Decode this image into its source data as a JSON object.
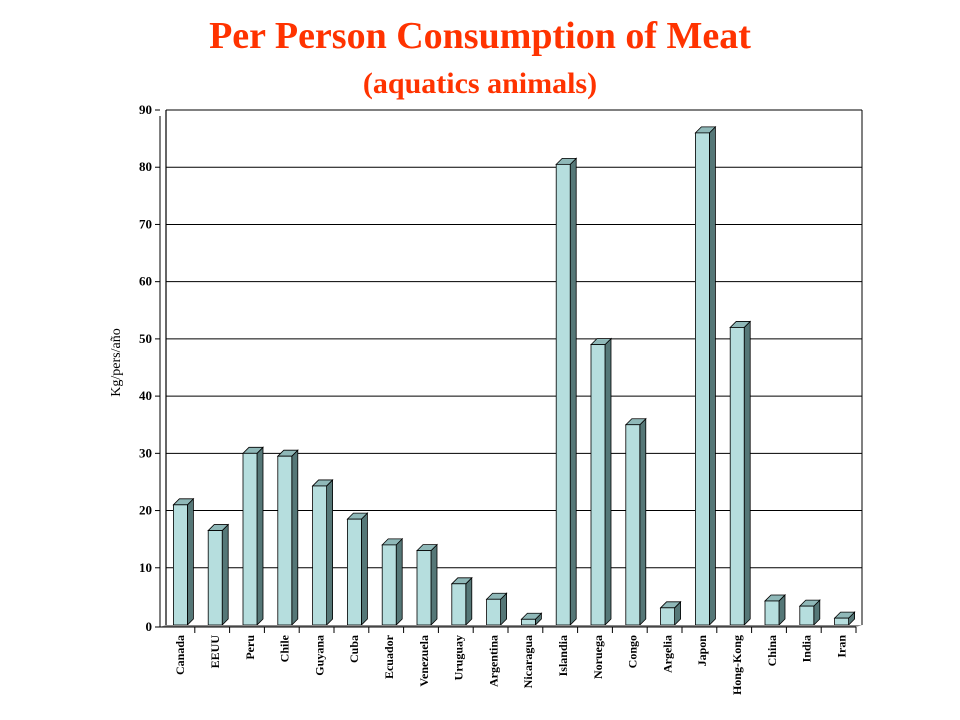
{
  "chart_data": {
    "type": "bar",
    "title": "Per Person Consumption of Meat",
    "subtitle": "(aquatics animals)",
    "ylabel": "Kg/pers/año",
    "xlabel": "",
    "ylim": [
      0,
      90
    ],
    "yticks": [
      0,
      10,
      20,
      30,
      40,
      50,
      60,
      70,
      80,
      90
    ],
    "grid": true,
    "categories": [
      "Canada",
      "EEUU",
      "Peru",
      "Chile",
      "Guyana",
      "Cuba",
      "Ecuador",
      "Venezuela",
      "Uruguay",
      "Argentina",
      "Nicaragua",
      "Islandia",
      "Noruega",
      "Congo",
      "Argelia",
      "Japon",
      "Hong-Kong",
      "China",
      "India",
      "Iran"
    ],
    "values": [
      21,
      16.5,
      30,
      29.5,
      24.3,
      18.5,
      14,
      13,
      7.2,
      4.5,
      1,
      80.5,
      49,
      35,
      3,
      86,
      52,
      4.2,
      3.3,
      1.2
    ],
    "colors": {
      "bar_face": "#b6dede",
      "bar_side": "#557777",
      "bar_top": "#8fb8b8",
      "title": "#ff3300"
    }
  }
}
